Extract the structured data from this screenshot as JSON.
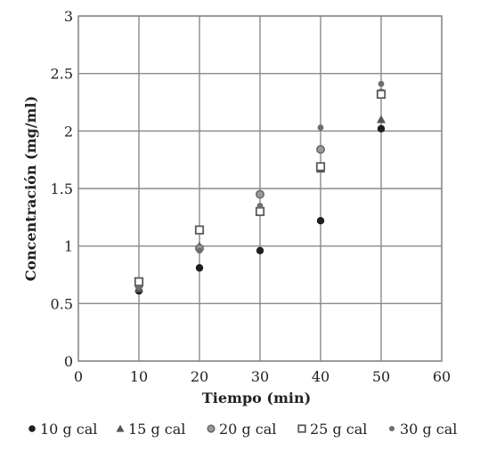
{
  "chart_data": {
    "type": "scatter",
    "xlabel": "Tiempo (min)",
    "ylabel": "Concentración (mg/ml)",
    "xlim": [
      0,
      60
    ],
    "ylim": [
      0,
      3
    ],
    "xticks": [
      "0",
      "10",
      "20",
      "30",
      "40",
      "50",
      "60"
    ],
    "yticks": [
      "0",
      "0.5",
      "1",
      "1.5",
      "2",
      "2.5",
      "3"
    ],
    "grid": true,
    "legend_position": "bottom",
    "x": [
      10,
      20,
      30,
      40,
      50
    ],
    "series": [
      {
        "name": "10 g cal",
        "marker": "circle-filled",
        "color": "#1e1e1e",
        "values": [
          0.61,
          0.81,
          0.96,
          1.22,
          2.02
        ]
      },
      {
        "name": "15 g cal",
        "marker": "triangle",
        "color": "#555555",
        "values": [
          0.63,
          1.0,
          1.32,
          1.67,
          2.1
        ]
      },
      {
        "name": "20 g cal",
        "marker": "circle-ring",
        "color": "#6a6a6a",
        "values": [
          0.66,
          0.98,
          1.45,
          1.84,
          2.33
        ]
      },
      {
        "name": "25 g cal",
        "marker": "square-open",
        "color": "#5a5a5a",
        "values": [
          0.69,
          1.14,
          1.3,
          1.69,
          2.32
        ]
      },
      {
        "name": "30 g cal",
        "marker": "circle-small",
        "color": "#6e6e6e",
        "values": [
          0.64,
          0.96,
          1.35,
          2.03,
          2.41
        ]
      }
    ]
  }
}
